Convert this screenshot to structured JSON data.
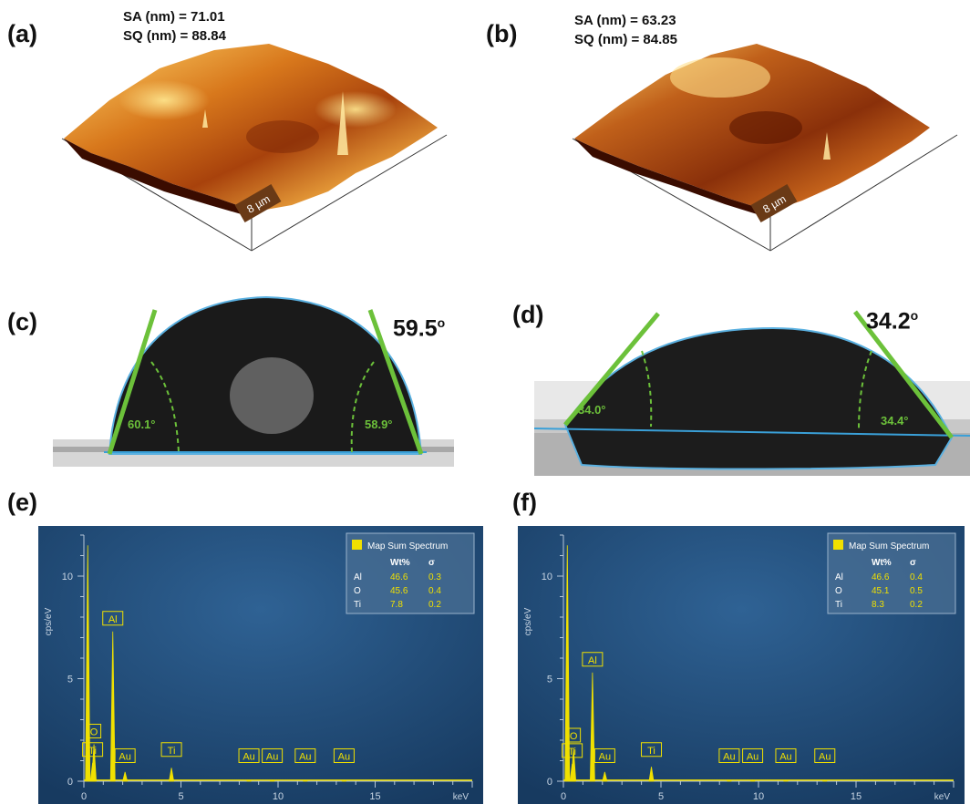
{
  "panels": {
    "a": {
      "label": "(a)",
      "sa": "SA (nm) = 71.01",
      "sq": "SQ (nm) = 88.84",
      "scale_bar": "8 µm"
    },
    "b": {
      "label": "(b)",
      "sa": "SA (nm) = 63.23",
      "sq": "SQ (nm) = 84.85",
      "scale_bar": "8 µm"
    },
    "c": {
      "label": "(c)",
      "contact_angle": "59.5",
      "left_angle": "60.1°",
      "right_angle": "58.9°"
    },
    "d": {
      "label": "(d)",
      "contact_angle": "34.2",
      "left_angle": "34.0°",
      "right_angle": "34.4°"
    },
    "e": {
      "label": "(e)"
    },
    "f": {
      "label": "(f)"
    }
  },
  "colors": {
    "afm_dark": "#5a1600",
    "afm_mid": "#c25a12",
    "afm_light": "#ffd060",
    "eds_bg": "#1e4a77",
    "spectrum": "#f0e000",
    "tangent": "#6cc13a",
    "baseline": "#3aa0d8"
  },
  "chart_data": [
    {
      "panel": "e",
      "type": "line",
      "title": "",
      "xlabel": "keV",
      "ylabel": "cps/eV",
      "xlim": [
        0,
        20
      ],
      "ylim": [
        0,
        12
      ],
      "x_ticks": [
        "0",
        "5",
        "10",
        "15"
      ],
      "y_ticks": [
        "0",
        "5",
        "10"
      ],
      "series": [
        {
          "x": [
            0.2,
            0.52,
            0.45,
            1.49,
            2.12,
            4.51,
            8.5,
            9.7,
            11.4,
            13.4
          ],
          "y": [
            11.5,
            1.8,
            0.9,
            7.3,
            0.45,
            0.65,
            0.05,
            0.05,
            0.05,
            0.05
          ]
        }
      ],
      "peak_labels": [
        {
          "text": "O",
          "x": 0.52,
          "y": 1.8
        },
        {
          "text": "Ti",
          "x": 0.45,
          "y": 0.9
        },
        {
          "text": "Al",
          "x": 1.49,
          "y": 7.3
        },
        {
          "text": "Au",
          "x": 2.12,
          "y": 0.6
        },
        {
          "text": "Ti",
          "x": 4.51,
          "y": 0.9
        },
        {
          "text": "Au",
          "x": 8.5,
          "y": 0.6
        },
        {
          "text": "Au",
          "x": 9.7,
          "y": 0.6
        },
        {
          "text": "Au",
          "x": 11.4,
          "y": 0.6
        },
        {
          "text": "Au",
          "x": 13.4,
          "y": 0.6
        }
      ],
      "legend": {
        "title": "Map Sum Spectrum",
        "headers": [
          "Wt%",
          "σ"
        ],
        "rows": [
          {
            "element": "Al",
            "wt": "46.6",
            "sigma": "0.3"
          },
          {
            "element": "O",
            "wt": "45.6",
            "sigma": "0.4"
          },
          {
            "element": "Ti",
            "wt": "7.8",
            "sigma": "0.2"
          }
        ]
      }
    },
    {
      "panel": "f",
      "type": "line",
      "title": "",
      "xlabel": "keV",
      "ylabel": "cps/eV",
      "xlim": [
        0,
        20
      ],
      "ylim": [
        0,
        12
      ],
      "x_ticks": [
        "0",
        "5",
        "10",
        "15"
      ],
      "y_ticks": [
        "0",
        "5",
        "10"
      ],
      "series": [
        {
          "x": [
            0.2,
            0.52,
            0.45,
            1.49,
            2.12,
            4.51,
            8.5,
            9.7,
            11.4,
            13.4
          ],
          "y": [
            11.5,
            1.6,
            0.85,
            5.3,
            0.45,
            0.7,
            0.05,
            0.05,
            0.05,
            0.05
          ]
        }
      ],
      "peak_labels": [
        {
          "text": "O",
          "x": 0.52,
          "y": 1.6
        },
        {
          "text": "Ti",
          "x": 0.45,
          "y": 0.85
        },
        {
          "text": "Al",
          "x": 1.49,
          "y": 5.3
        },
        {
          "text": "Au",
          "x": 2.12,
          "y": 0.6
        },
        {
          "text": "Ti",
          "x": 4.51,
          "y": 0.9
        },
        {
          "text": "Au",
          "x": 8.5,
          "y": 0.6
        },
        {
          "text": "Au",
          "x": 9.7,
          "y": 0.6
        },
        {
          "text": "Au",
          "x": 11.4,
          "y": 0.6
        },
        {
          "text": "Au",
          "x": 13.4,
          "y": 0.6
        }
      ],
      "legend": {
        "title": "Map Sum Spectrum",
        "headers": [
          "Wt%",
          "σ"
        ],
        "rows": [
          {
            "element": "Al",
            "wt": "46.6",
            "sigma": "0.4"
          },
          {
            "element": "O",
            "wt": "45.1",
            "sigma": "0.5"
          },
          {
            "element": "Ti",
            "wt": "8.3",
            "sigma": "0.2"
          }
        ]
      }
    }
  ]
}
